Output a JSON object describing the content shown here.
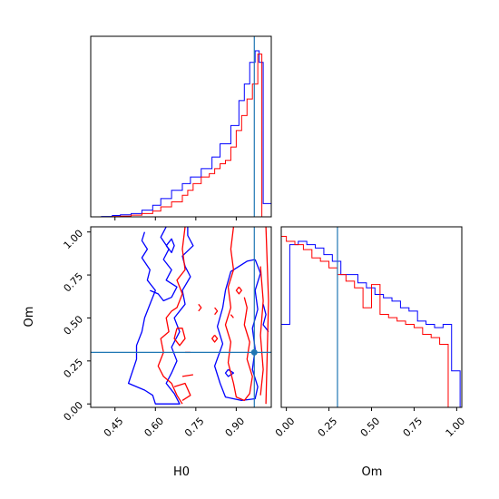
{
  "chart_data": {
    "type": "corner",
    "parameters": [
      "H0",
      "Om"
    ],
    "truth": {
      "H0": 0.967,
      "Om": 0.3
    },
    "colors": {
      "sample_a": "#0000ff",
      "sample_b": "#ff0000",
      "truth": "#1f77b4"
    },
    "panels": [
      {
        "id": "H0-marginal",
        "type": "histogram",
        "xlim": [
          0.36,
          1.03
        ],
        "y_ticks_shown": false,
        "series": [
          {
            "color_key": "sample_a",
            "bins": [
              0.36,
              0.4,
              0.44,
              0.47,
              0.51,
              0.55,
              0.59,
              0.62,
              0.66,
              0.7,
              0.73,
              0.77,
              0.81,
              0.84,
              0.88,
              0.91,
              0.93,
              0.95,
              0.97,
              0.985,
              1.0,
              1.03
            ],
            "values": [
              0.0,
              0.002,
              0.008,
              0.012,
              0.02,
              0.04,
              0.07,
              0.11,
              0.16,
              0.2,
              0.24,
              0.29,
              0.36,
              0.44,
              0.55,
              0.7,
              0.8,
              0.93,
              1.0,
              0.93,
              0.08
            ]
          },
          {
            "color_key": "sample_b",
            "bins": [
              0.36,
              0.4,
              0.44,
              0.47,
              0.51,
              0.55,
              0.59,
              0.62,
              0.66,
              0.7,
              0.72,
              0.74,
              0.77,
              0.8,
              0.82,
              0.84,
              0.86,
              0.88,
              0.9,
              0.92,
              0.94,
              0.96,
              0.98,
              0.995,
              1.03
            ],
            "values": [
              0.0,
              0.0,
              0.002,
              0.004,
              0.01,
              0.02,
              0.035,
              0.06,
              0.09,
              0.13,
              0.16,
              0.2,
              0.24,
              0.26,
              0.29,
              0.32,
              0.34,
              0.42,
              0.52,
              0.61,
              0.71,
              0.8,
              0.98,
              0.0
            ]
          }
        ]
      },
      {
        "id": "H0-Om-contour",
        "type": "contour",
        "xlim": [
          0.36,
          1.03
        ],
        "ylim": [
          -0.02,
          1.03
        ],
        "xlabel": "H0",
        "ylabel": "Om",
        "x_ticks": [
          "0.45",
          "0.60",
          "0.75",
          "0.90"
        ],
        "y_ticks": [
          "0.00",
          "0.25",
          "0.50",
          "0.75",
          "1.00"
        ],
        "x_tick_values": [
          0.45,
          0.6,
          0.75,
          0.9
        ],
        "y_tick_values": [
          0.0,
          0.25,
          0.5,
          0.75,
          1.0
        ],
        "contours": [
          {
            "color_key": "sample_a",
            "points": [
              [
                0.56,
                1.0
              ],
              [
                0.55,
                0.95
              ],
              [
                0.57,
                0.9
              ],
              [
                0.55,
                0.85
              ],
              [
                0.58,
                0.78
              ],
              [
                0.57,
                0.72
              ],
              [
                0.6,
                0.66
              ],
              [
                0.58,
                0.58
              ],
              [
                0.56,
                0.5
              ],
              [
                0.55,
                0.42
              ],
              [
                0.53,
                0.34
              ],
              [
                0.53,
                0.26
              ],
              [
                0.5,
                0.12
              ],
              [
                0.56,
                0.08
              ],
              [
                0.59,
                0.05
              ],
              [
                0.6,
                0.0
              ],
              [
                0.64,
                0.0
              ],
              [
                0.69,
                0.0
              ],
              [
                0.67,
                0.06
              ],
              [
                0.64,
                0.12
              ],
              [
                0.66,
                0.18
              ],
              [
                0.68,
                0.25
              ],
              [
                0.66,
                0.33
              ],
              [
                0.69,
                0.42
              ],
              [
                0.67,
                0.5
              ],
              [
                0.71,
                0.58
              ],
              [
                0.7,
                0.66
              ],
              [
                0.73,
                0.74
              ],
              [
                0.71,
                0.8
              ],
              [
                0.7,
                0.86
              ],
              [
                0.74,
                0.92
              ],
              [
                0.72,
                0.98
              ],
              [
                0.72,
                1.03
              ]
            ]
          },
          {
            "color_key": "sample_a",
            "points": [
              [
                0.64,
                1.03
              ],
              [
                0.62,
                0.97
              ],
              [
                0.65,
                0.9
              ],
              [
                0.63,
                0.84
              ],
              [
                0.66,
                0.78
              ],
              [
                0.64,
                0.72
              ],
              [
                0.68,
                0.68
              ],
              [
                0.66,
                0.62
              ],
              [
                0.63,
                0.6
              ],
              [
                0.61,
                0.64
              ],
              [
                0.58,
                0.66
              ]
            ]
          },
          {
            "color_key": "sample_a",
            "points": [
              [
                0.64,
                0.92
              ],
              [
                0.66,
                0.96
              ],
              [
                0.67,
                0.92
              ],
              [
                0.66,
                0.88
              ],
              [
                0.64,
                0.92
              ]
            ]
          },
          {
            "color_key": "sample_a",
            "points": [
              [
                0.97,
                0.84
              ],
              [
                0.94,
                0.83
              ],
              [
                0.88,
                0.77
              ],
              [
                0.86,
                0.66
              ],
              [
                0.85,
                0.56
              ],
              [
                0.83,
                0.45
              ],
              [
                0.85,
                0.35
              ],
              [
                0.82,
                0.22
              ],
              [
                0.84,
                0.12
              ],
              [
                0.86,
                0.04
              ],
              [
                0.92,
                0.02
              ],
              [
                0.97,
                0.03
              ],
              [
                0.98,
                0.1
              ],
              [
                0.96,
                0.2
              ],
              [
                0.97,
                0.32
              ],
              [
                0.96,
                0.44
              ],
              [
                0.98,
                0.55
              ],
              [
                0.97,
                0.66
              ],
              [
                0.99,
                0.76
              ],
              [
                0.97,
                0.84
              ]
            ]
          },
          {
            "color_key": "sample_a",
            "points": [
              [
                0.87,
                0.2
              ],
              [
                0.86,
                0.18
              ],
              [
                0.87,
                0.16
              ],
              [
                0.89,
                0.18
              ],
              [
                0.87,
                0.2
              ]
            ]
          },
          {
            "color_key": "sample_a",
            "points": [
              [
                1.0,
                0.58
              ],
              [
                1.01,
                0.52
              ],
              [
                1.0,
                0.46
              ],
              [
                1.02,
                0.42
              ]
            ]
          },
          {
            "color_key": "sample_b",
            "points": [
              [
                0.71,
                1.03
              ],
              [
                0.7,
                0.9
              ],
              [
                0.71,
                0.78
              ],
              [
                0.68,
                0.72
              ],
              [
                0.7,
                0.64
              ],
              [
                0.68,
                0.56
              ],
              [
                0.66,
                0.54
              ],
              [
                0.64,
                0.5
              ],
              [
                0.65,
                0.42
              ],
              [
                0.62,
                0.38
              ],
              [
                0.63,
                0.3
              ],
              [
                0.61,
                0.22
              ],
              [
                0.63,
                0.16
              ],
              [
                0.66,
                0.12
              ],
              [
                0.68,
                0.05
              ],
              [
                0.7,
                0.0
              ]
            ]
          },
          {
            "color_key": "sample_b",
            "points": [
              [
                0.68,
                0.44
              ],
              [
                0.67,
                0.38
              ],
              [
                0.69,
                0.34
              ],
              [
                0.71,
                0.38
              ],
              [
                0.7,
                0.44
              ],
              [
                0.68,
                0.44
              ]
            ]
          },
          {
            "color_key": "sample_b",
            "points": [
              [
                0.7,
                0.16
              ],
              [
                0.74,
                0.17
              ]
            ]
          },
          {
            "color_key": "sample_b",
            "points": [
              [
                0.67,
                0.1
              ],
              [
                0.71,
                0.12
              ],
              [
                0.73,
                0.05
              ],
              [
                0.7,
                0.02
              ]
            ]
          },
          {
            "color_key": "sample_b",
            "points": [
              [
                0.71,
                0.3
              ],
              [
                0.73,
                0.3
              ]
            ]
          },
          {
            "color_key": "sample_b",
            "points": [
              [
                0.89,
                1.03
              ],
              [
                0.88,
                0.9
              ],
              [
                0.89,
                0.78
              ],
              [
                0.87,
                0.68
              ],
              [
                0.88,
                0.56
              ],
              [
                0.86,
                0.46
              ],
              [
                0.88,
                0.36
              ],
              [
                0.87,
                0.24
              ],
              [
                0.89,
                0.12
              ],
              [
                0.9,
                0.04
              ],
              [
                0.93,
                0.02
              ],
              [
                0.95,
                0.06
              ],
              [
                0.96,
                0.16
              ],
              [
                0.94,
                0.26
              ],
              [
                0.95,
                0.36
              ],
              [
                0.93,
                0.46
              ],
              [
                0.94,
                0.56
              ],
              [
                0.93,
                0.62
              ]
            ]
          },
          {
            "color_key": "sample_b",
            "points": [
              [
                0.76,
                0.58
              ],
              [
                0.77,
                0.56
              ],
              [
                0.76,
                0.54
              ]
            ]
          },
          {
            "color_key": "sample_b",
            "points": [
              [
                0.82,
                0.4
              ],
              [
                0.83,
                0.38
              ],
              [
                0.82,
                0.36
              ],
              [
                0.81,
                0.38
              ],
              [
                0.82,
                0.4
              ]
            ]
          },
          {
            "color_key": "sample_b",
            "points": [
              [
                0.88,
                0.52
              ],
              [
                0.89,
                0.5
              ]
            ]
          },
          {
            "color_key": "sample_b",
            "points": [
              [
                0.82,
                0.56
              ],
              [
                0.83,
                0.54
              ],
              [
                0.82,
                0.52
              ]
            ]
          },
          {
            "color_key": "sample_b",
            "points": [
              [
                0.91,
                0.68
              ],
              [
                0.92,
                0.66
              ],
              [
                0.91,
                0.64
              ],
              [
                0.9,
                0.66
              ],
              [
                0.91,
                0.68
              ]
            ]
          },
          {
            "color_key": "sample_b",
            "points": [
              [
                0.99,
                0.8
              ],
              [
                1.0,
                0.6
              ],
              [
                0.99,
                0.4
              ],
              [
                1.0,
                0.2
              ],
              [
                0.99,
                0.05
              ]
            ]
          },
          {
            "color_key": "sample_b",
            "points": [
              [
                1.01,
                1.03
              ],
              [
                1.02,
                0.6
              ],
              [
                1.01,
                0.0
              ]
            ]
          }
        ]
      },
      {
        "id": "Om-marginal",
        "type": "histogram",
        "xlim": [
          -0.03,
          1.03
        ],
        "xlabel": "Om",
        "x_ticks": [
          "0.00",
          "0.25",
          "0.50",
          "0.75",
          "1.00"
        ],
        "x_tick_values": [
          0.0,
          0.25,
          0.5,
          0.75,
          1.0
        ],
        "y_ticks_shown": false,
        "series": [
          {
            "color_key": "sample_a",
            "bins": [
              -0.03,
              0.02,
              0.07,
              0.12,
              0.17,
              0.22,
              0.27,
              0.32,
              0.37,
              0.42,
              0.47,
              0.52,
              0.57,
              0.62,
              0.67,
              0.72,
              0.77,
              0.82,
              0.87,
              0.92,
              0.97,
              1.02
            ],
            "values": [
              0.5,
              0.98,
              1.0,
              0.98,
              0.96,
              0.92,
              0.88,
              0.8,
              0.8,
              0.75,
              0.72,
              0.68,
              0.66,
              0.64,
              0.6,
              0.58,
              0.52,
              0.5,
              0.48,
              0.5,
              0.22
            ]
          },
          {
            "color_key": "sample_b",
            "bins": [
              -0.03,
              0.0,
              0.05,
              0.1,
              0.15,
              0.2,
              0.25,
              0.3,
              0.35,
              0.4,
              0.45,
              0.5,
              0.55,
              0.6,
              0.65,
              0.7,
              0.75,
              0.8,
              0.85,
              0.9,
              0.95,
              1.0
            ],
            "values": [
              1.03,
              1.0,
              0.98,
              0.95,
              0.9,
              0.88,
              0.84,
              0.8,
              0.76,
              0.72,
              0.6,
              0.74,
              0.56,
              0.54,
              0.52,
              0.5,
              0.48,
              0.44,
              0.42,
              0.38,
              0.0
            ]
          }
        ]
      }
    ]
  }
}
